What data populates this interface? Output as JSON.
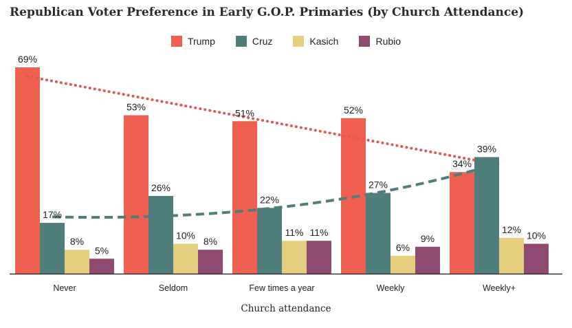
{
  "chart_data": {
    "type": "bar",
    "title": "Republican Voter Preference in Early G.O.P. Primaries (by Church Attendance)",
    "xlabel": "Church attendance",
    "ylabel": "",
    "ylim": [
      0,
      70
    ],
    "grid": false,
    "legend_position": "top-center",
    "categories": [
      "Never",
      "Seldom",
      "Few times a year",
      "Weekly",
      "Weekly+"
    ],
    "series": [
      {
        "name": "Trump",
        "color": "#ef6050",
        "values": [
          69,
          53,
          51,
          52,
          34
        ]
      },
      {
        "name": "Cruz",
        "color": "#4f7d7b",
        "values": [
          17,
          26,
          22,
          27,
          39
        ]
      },
      {
        "name": "Kasich",
        "color": "#e4cf7f",
        "values": [
          8,
          10,
          11,
          6,
          12
        ]
      },
      {
        "name": "Rubio",
        "color": "#8f4a72",
        "values": [
          5,
          8,
          11,
          9,
          10
        ]
      }
    ],
    "value_suffix": "%",
    "trendlines": [
      {
        "series": "Trump",
        "style": "dotted",
        "color": "#e0594a",
        "start_value": 66,
        "end_value": 38
      },
      {
        "series": "Cruz",
        "style": "dashed",
        "color": "#4f7d7b",
        "start_value": 19,
        "end_value": 37
      }
    ]
  }
}
